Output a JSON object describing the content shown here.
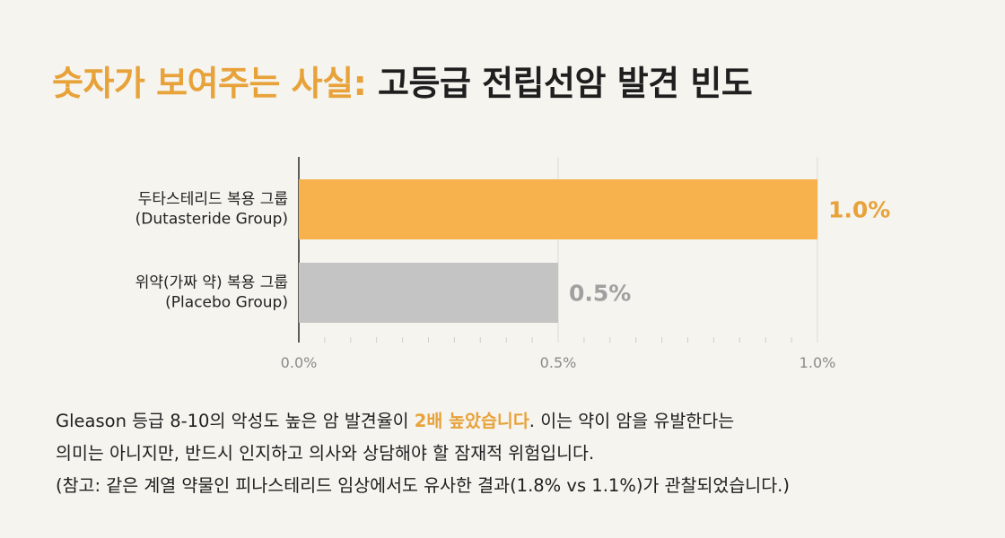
{
  "title": {
    "highlight": "숫자가 보여주는 사실:",
    "rest": "고등급 전립선암 발견 빈도"
  },
  "colors": {
    "accent": "#e8a23a",
    "dutasteride_bar": "#f7b14d",
    "placebo_bar": "#c4c4c4",
    "placebo_label": "#a0a0a0"
  },
  "chart_data": {
    "type": "bar",
    "orientation": "horizontal",
    "categories": [
      [
        "두타스테리드 복용 그룹",
        "(Dutasteride Group)"
      ],
      [
        "위약(가짜 약) 복용 그룹",
        "(Placebo Group)"
      ]
    ],
    "values": [
      1.0,
      0.5
    ],
    "value_labels": [
      "1.0%",
      "0.5%"
    ],
    "xlim": [
      0,
      1.0
    ],
    "xticks": [
      "0.0%",
      "0.5%",
      "1.0%"
    ],
    "xtick_values": [
      0,
      0.5,
      1.0
    ],
    "grid": true
  },
  "body": {
    "line1_before": "Gleason 등급 8-10의 악성도 높은 암 발견율이 ",
    "line1_emph": "2배 높았습니다",
    "line1_after": ". 이는 약이 암을 유발한다는",
    "line2": "의미는 아니지만, 반드시 인지하고 의사와 상담해야 할 잠재적 위험입니다.",
    "line3": "(참고: 같은 계열 약물인 피나스테리드 임상에서도 유사한 결과(1.8% vs 1.1%)가 관찰되었습니다.)"
  }
}
